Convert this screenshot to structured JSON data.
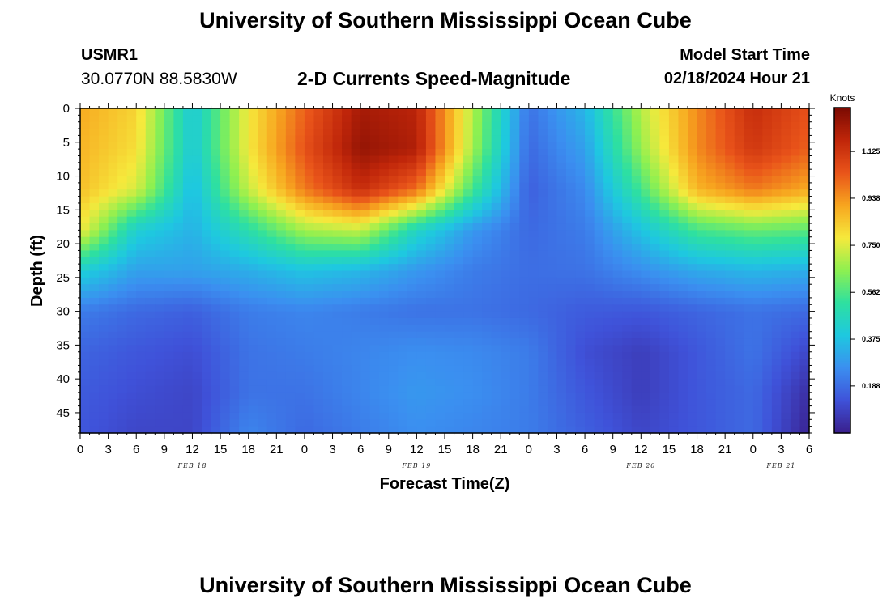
{
  "header": {
    "title": "University of Southern Mississippi Ocean Cube",
    "station_id": "USMR1",
    "station_coords": "30.0770N  88.5830W",
    "plot_title": "2-D Currents Speed-Magnitude",
    "model_start_label": "Model Start Time",
    "model_start_value": "02/18/2024 Hour 21"
  },
  "footer": {
    "title": "University of Southern Mississippi Ocean Cube"
  },
  "chart_data": {
    "type": "heatmap",
    "title": "2-D Currents Speed-Magnitude",
    "xlabel": "Forecast Time(Z)",
    "ylabel": "Depth (ft)",
    "x_tick_labels": [
      "0",
      "3",
      "6",
      "9",
      "12",
      "15",
      "18",
      "21",
      "0",
      "3",
      "6",
      "9",
      "12",
      "15",
      "18",
      "21",
      "0",
      "3",
      "6",
      "9",
      "12",
      "15",
      "18",
      "21",
      "0",
      "3",
      "6"
    ],
    "x_range_hours": [
      0,
      78
    ],
    "date_labels": [
      {
        "label": "FEB 18",
        "hour": 12
      },
      {
        "label": "FEB 19",
        "hour": 36
      },
      {
        "label": "FEB 20",
        "hour": 60
      },
      {
        "label": "FEB 21",
        "hour": 75
      }
    ],
    "y_tick_labels": [
      "0",
      "5",
      "10",
      "15",
      "20",
      "25",
      "30",
      "35",
      "40",
      "45"
    ],
    "y_range": [
      0,
      48
    ],
    "y_inverted": true,
    "colorbar": {
      "units": "Knots",
      "tick_labels": [
        "1.125",
        "0.938",
        "0.750",
        "0.562",
        "0.375",
        "0.188"
      ],
      "range": [
        0,
        1.3
      ],
      "colors": [
        "#3a1f8c",
        "#3f52d9",
        "#3b8ff0",
        "#1ec8e0",
        "#2ee0a0",
        "#8ef050",
        "#f6e93c",
        "#f7a51f",
        "#e9541a",
        "#c0260a",
        "#7a0a02"
      ]
    },
    "speed_grid_description": "speed in knots sampled at depth rows 0,6,12,18,24,30,36,42,48 ft and hours 0..78 step 6",
    "depth_rows_ft": [
      0,
      6,
      12,
      18,
      24,
      30,
      36,
      42,
      48
    ],
    "hours": [
      0,
      6,
      12,
      18,
      24,
      30,
      36,
      42,
      48,
      54,
      60,
      66,
      72,
      78
    ],
    "speed_knots": [
      [
        0.9,
        0.82,
        0.4,
        0.78,
        1.02,
        1.22,
        1.18,
        0.7,
        0.2,
        0.35,
        0.7,
        0.95,
        1.15,
        1.05
      ],
      [
        0.88,
        0.8,
        0.4,
        0.78,
        1.05,
        1.25,
        1.2,
        0.68,
        0.18,
        0.3,
        0.66,
        0.95,
        1.12,
        1.02
      ],
      [
        0.86,
        0.74,
        0.36,
        0.72,
        0.98,
        1.15,
        1.0,
        0.55,
        0.16,
        0.25,
        0.55,
        0.88,
        0.98,
        0.9
      ],
      [
        0.78,
        0.42,
        0.34,
        0.5,
        0.68,
        0.72,
        0.45,
        0.28,
        0.18,
        0.22,
        0.38,
        0.55,
        0.6,
        0.58
      ],
      [
        0.42,
        0.3,
        0.3,
        0.33,
        0.38,
        0.35,
        0.28,
        0.22,
        0.19,
        0.2,
        0.26,
        0.32,
        0.35,
        0.33
      ],
      [
        0.22,
        0.18,
        0.16,
        0.22,
        0.24,
        0.22,
        0.2,
        0.2,
        0.18,
        0.15,
        0.14,
        0.17,
        0.2,
        0.18
      ],
      [
        0.17,
        0.14,
        0.12,
        0.2,
        0.22,
        0.24,
        0.26,
        0.25,
        0.22,
        0.12,
        0.08,
        0.14,
        0.2,
        0.1
      ],
      [
        0.15,
        0.12,
        0.1,
        0.2,
        0.2,
        0.24,
        0.28,
        0.26,
        0.22,
        0.14,
        0.08,
        0.14,
        0.18,
        0.04
      ],
      [
        0.14,
        0.1,
        0.1,
        0.24,
        0.18,
        0.22,
        0.26,
        0.24,
        0.22,
        0.16,
        0.1,
        0.14,
        0.18,
        0.01
      ]
    ]
  }
}
